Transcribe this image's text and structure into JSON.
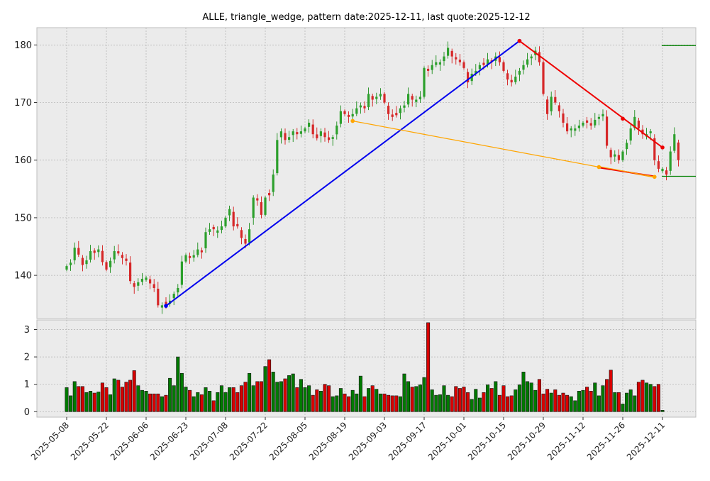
{
  "chart_data": {
    "type": "candlestick",
    "title": "ALLE, triangle_wedge, pattern date:2025-12-11, last quote:2025-12-12",
    "price_ylim": [
      132.5,
      183.0
    ],
    "price_yticks": [
      140,
      150,
      160,
      170,
      180
    ],
    "volume_ylim": [
      -0.2,
      3.35
    ],
    "volume_yticks": [
      0,
      1,
      2,
      3
    ],
    "xtick_labels": [
      "2025-05-08",
      "2025-05-22",
      "2025-06-06",
      "2025-06-23",
      "2025-07-08",
      "2025-07-22",
      "2025-08-05",
      "2025-08-19",
      "2025-09-03",
      "2025-09-17",
      "2025-10-01",
      "2025-10-15",
      "2025-10-29",
      "2025-11-12",
      "2025-11-26",
      "2025-12-11"
    ],
    "xtick_indices": [
      0,
      10,
      20,
      30,
      40,
      50,
      60,
      70,
      80,
      90,
      100,
      110,
      120,
      130,
      140,
      150
    ],
    "grid": true,
    "colors": {
      "up": "#008000",
      "down": "#d00000",
      "background": "#ebebeb",
      "blue_line": "#0000ee",
      "red_line": "#ee0000",
      "orange_line": "#ffa500",
      "green_level": "#008000"
    },
    "closes": [
      141.6,
      142.2,
      144.8,
      143.6,
      141.8,
      142.6,
      144.2,
      143.9,
      144.5,
      142.3,
      141.0,
      142.5,
      144.2,
      143.8,
      143.0,
      142.5,
      139.0,
      138.0,
      138.8,
      139.4,
      139.6,
      138.6,
      137.8,
      134.8,
      134.8,
      135.0,
      135.6,
      136.8,
      137.8,
      142.4,
      143.5,
      143.0,
      143.5,
      144.5,
      144.0,
      147.5,
      148.0,
      148.0,
      147.8,
      148.5,
      150.0,
      151.5,
      148.5,
      148.5,
      146.5,
      145.5,
      148.0,
      153.5,
      153.0,
      150.5,
      153.5,
      153.9,
      157.5,
      163.5,
      165.0,
      163.5,
      164.0,
      165.0,
      164.5,
      165.0,
      165.5,
      166.5,
      164.5,
      163.8,
      165.0,
      164.0,
      163.5,
      164.0,
      166.0,
      168.5,
      168.0,
      167.5,
      168.0,
      169.0,
      169.5,
      169.0,
      171.5,
      170.5,
      171.0,
      171.5,
      170.0,
      168.0,
      167.5,
      167.8,
      169.0,
      169.5,
      171.5,
      170.5,
      170.5,
      171.0,
      176.0,
      175.5,
      176.5,
      177.0,
      177.0,
      178.0,
      179.5,
      178.0,
      177.5,
      177.0,
      176.0,
      173.5,
      175.0,
      175.5,
      176.5,
      176.5,
      177.5,
      177.0,
      178.0,
      177.0,
      175.5,
      174.0,
      173.5,
      174.5,
      175.5,
      176.5,
      177.5,
      178.0,
      179.0,
      177.0,
      171.5,
      168.0,
      171.0,
      170.0,
      168.5,
      166.5,
      165.0,
      165.5,
      165.5,
      166.0,
      166.5,
      166.5,
      166.0,
      167.0,
      167.5,
      168.0,
      162.5,
      160.5,
      161.0,
      160.0,
      161.5,
      163.0,
      165.5,
      167.5,
      165.5,
      164.5,
      164.5,
      165.0,
      160.0,
      158.5,
      158.5,
      157.5,
      161.5,
      164.5,
      160.0
    ],
    "volumes": [
      0.88,
      0.58,
      1.1,
      0.92,
      0.92,
      0.7,
      0.75,
      0.68,
      0.72,
      1.05,
      0.88,
      0.62,
      1.2,
      1.15,
      0.9,
      1.08,
      1.15,
      1.5,
      0.95,
      0.78,
      0.75,
      0.65,
      0.65,
      0.65,
      0.55,
      0.6,
      1.22,
      0.95,
      2.0,
      1.4,
      0.9,
      0.78,
      0.55,
      0.7,
      0.62,
      0.88,
      0.75,
      0.4,
      0.7,
      0.95,
      0.7,
      0.88,
      0.88,
      0.7,
      0.95,
      1.08,
      1.4,
      0.95,
      1.1,
      1.1,
      1.65,
      1.9,
      1.45,
      1.08,
      1.1,
      1.2,
      1.32,
      1.38,
      0.88,
      1.18,
      0.88,
      0.95,
      0.6,
      0.8,
      0.75,
      1.0,
      0.95,
      0.55,
      0.58,
      0.85,
      0.65,
      0.55,
      0.78,
      0.65,
      1.3,
      0.55,
      0.85,
      0.95,
      0.82,
      0.65,
      0.65,
      0.6,
      0.58,
      0.58,
      0.55,
      1.38,
      1.1,
      0.9,
      0.92,
      0.98,
      1.25,
      3.25,
      0.8,
      0.6,
      0.62,
      0.95,
      0.6,
      0.55,
      0.92,
      0.85,
      0.9,
      0.7,
      0.45,
      0.82,
      0.5,
      0.7,
      0.98,
      0.85,
      1.1,
      0.6,
      0.95,
      0.55,
      0.58,
      0.8,
      0.98,
      1.45,
      1.1,
      1.05,
      0.78,
      1.18,
      0.65,
      0.82,
      0.68,
      0.8,
      0.6,
      0.68,
      0.6,
      0.55,
      0.4,
      0.75,
      0.78,
      0.9,
      0.75,
      1.05,
      0.58,
      0.95,
      1.18,
      1.52,
      0.7,
      0.7,
      0.28,
      0.68,
      0.8,
      0.58,
      1.08,
      1.15,
      1.05,
      1.0,
      0.92,
      1.0,
      0.05
    ],
    "lines": [
      {
        "name": "",
        "color": "blue",
        "points": [
          [
            25,
            134.7
          ],
          [
            114,
            180.7
          ]
        ]
      },
      {
        "name": "",
        "color": "red",
        "points": [
          [
            114,
            180.7
          ],
          [
            150,
            162.2
          ]
        ]
      },
      {
        "name": "",
        "color": "orange",
        "points": [
          [
            72,
            166.8
          ],
          [
            148,
            157.0
          ]
        ]
      },
      {
        "name": "",
        "color": "red",
        "points": [
          [
            134,
            158.7
          ],
          [
            148,
            157.2
          ]
        ]
      },
      {
        "name": "",
        "color": "orange",
        "points": [
          [
            134,
            158.9
          ],
          [
            148,
            157.1
          ]
        ]
      }
    ],
    "horizontal_levels": [
      {
        "color": "green",
        "value": 179.9
      },
      {
        "color": "green",
        "value": 157.2
      }
    ],
    "markers": [
      {
        "color": "blue",
        "index": 25,
        "value": 134.7
      },
      {
        "color": "blue",
        "index": 114,
        "value": 180.7
      },
      {
        "color": "red",
        "index": 114,
        "value": 180.7
      },
      {
        "color": "red",
        "index": 140,
        "value": 167.2
      },
      {
        "color": "red",
        "index": 150,
        "value": 162.2
      },
      {
        "color": "orange",
        "index": 72,
        "value": 166.8
      },
      {
        "color": "orange",
        "index": 134,
        "value": 158.8
      },
      {
        "color": "orange",
        "index": 148,
        "value": 157.1
      }
    ]
  }
}
